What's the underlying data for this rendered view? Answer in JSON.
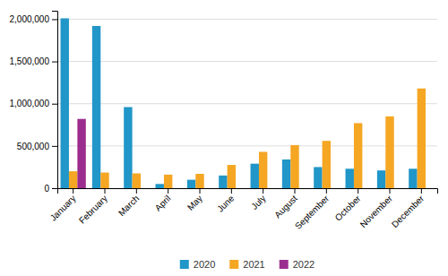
{
  "chart_data": {
    "type": "bar",
    "categories": [
      "January",
      "February",
      "March",
      "April",
      "May",
      "June",
      "July",
      "August",
      "September",
      "October",
      "November",
      "December"
    ],
    "series": [
      {
        "name": "2020",
        "color": "#2196C8",
        "values": [
          2010000,
          1920000,
          960000,
          50000,
          100000,
          150000,
          290000,
          340000,
          250000,
          230000,
          210000,
          230000
        ]
      },
      {
        "name": "2021",
        "color": "#F5A623",
        "values": [
          200000,
          185000,
          175000,
          160000,
          170000,
          275000,
          430000,
          510000,
          560000,
          770000,
          850000,
          1180000
        ]
      },
      {
        "name": "2022",
        "color": "#9B2D8E",
        "values": [
          820000,
          0,
          0,
          0,
          0,
          0,
          0,
          0,
          0,
          0,
          0,
          0
        ]
      }
    ],
    "ylim": [
      0,
      2100000
    ],
    "yticks": [
      0,
      {
        "value": 500000,
        "label": "500,000"
      },
      {
        "value": 1000000,
        "label": "1,000,000"
      },
      {
        "value": 1500000,
        "label": "1,500,000"
      },
      {
        "value": 2000000,
        "label": "2,000,000"
      }
    ],
    "grid": true,
    "legend": "bottom"
  }
}
